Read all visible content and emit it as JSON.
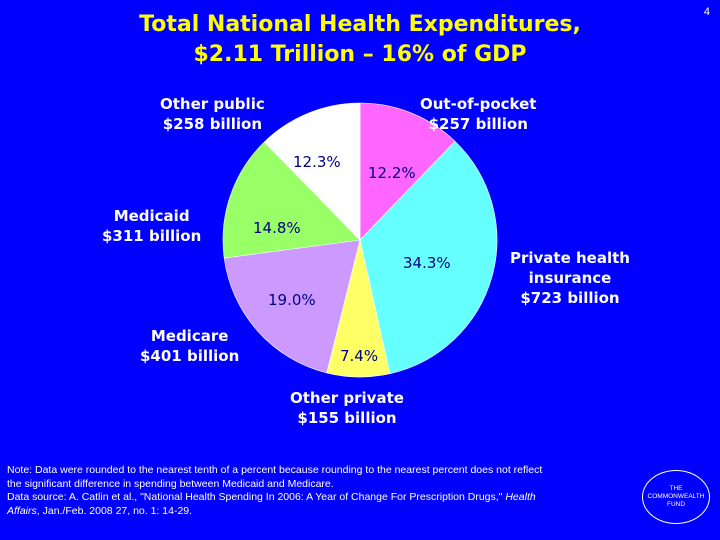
{
  "title": {
    "line1": "Total National Health Expenditures,",
    "line2": "$2.11 Trillion – 16% of GDP"
  },
  "page_number": "4",
  "chart_data": {
    "type": "pie",
    "title": "Total National Health Expenditures, $2.11 Trillion – 16% of GDP",
    "slices": [
      {
        "name": "Out-of-pocket",
        "amount": "$257 billion",
        "percent": 12.2,
        "percent_label": "12.2%",
        "color": "#ff66ff"
      },
      {
        "name": "Private health insurance",
        "amount": "$723 billion",
        "percent": 34.3,
        "percent_label": "34.3%",
        "color": "#66ffff"
      },
      {
        "name": "Other private",
        "amount": "$155 billion",
        "percent": 7.4,
        "percent_label": "7.4%",
        "color": "#ffff66"
      },
      {
        "name": "Medicare",
        "amount": "$401 billion",
        "percent": 19.0,
        "percent_label": "19.0%",
        "color": "#cc99ff"
      },
      {
        "name": "Medicaid",
        "amount": "$311 billion",
        "percent": 14.8,
        "percent_label": "14.8%",
        "color": "#99ff66"
      },
      {
        "name": "Other public",
        "amount": "$258 billion",
        "percent": 12.3,
        "percent_label": "12.3%",
        "color": "#ffffff"
      }
    ],
    "slice_labels": {
      "out_of_pocket": {
        "line1": "Out-of-pocket",
        "line2": "$257 billion"
      },
      "private_insurance": {
        "line1": "Private health",
        "line2": "insurance",
        "line3": "$723 billion"
      },
      "other_private": {
        "line1": "Other private",
        "line2": "$155 billion"
      },
      "medicare": {
        "line1": "Medicare",
        "line2": "$401 billion"
      },
      "medicaid": {
        "line1": "Medicaid",
        "line2": "$311 billion"
      },
      "other_public": {
        "line1": "Other public",
        "line2": "$258 billion"
      }
    }
  },
  "note": {
    "line1": "Note: Data were rounded to the nearest tenth of a percent because rounding to the nearest percent does not reflect",
    "line2": "the significant difference in spending between Medicaid and Medicare.",
    "line3_prefix": "Data source: A. Catlin et al., \"National Health Spending In 2006: A Year of Change For Prescription Drugs,\" ",
    "line3_italic": "Health",
    "line4_italic": "Affairs",
    "line4_suffix": ", Jan./Feb. 2008 27, no. 1: 14-29."
  },
  "logo": {
    "line1": "THE",
    "line2": "COMMONWEALTH",
    "line3": "FUND"
  }
}
